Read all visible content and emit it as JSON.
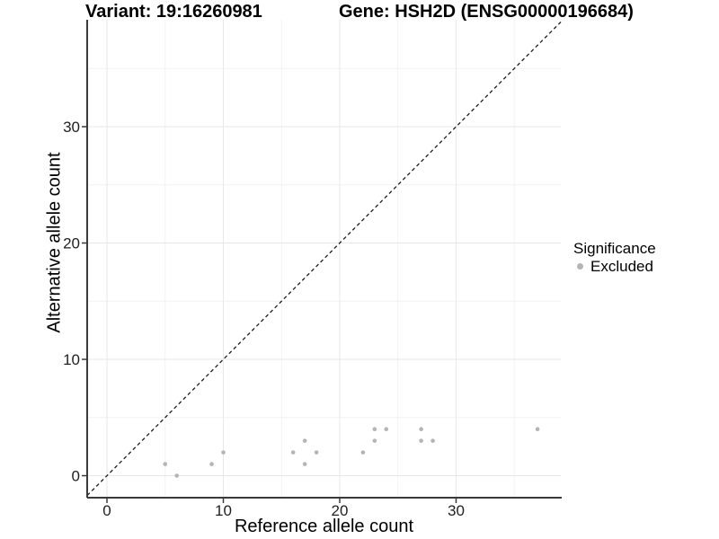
{
  "chart_data": {
    "type": "scatter",
    "title_left": "Variant: 19:16260981",
    "title_right": "Gene: HSH2D (ENSG00000196684)",
    "xlabel": "Reference allele count",
    "ylabel": "Alternative allele count",
    "x_ticks": [
      0,
      10,
      20,
      30
    ],
    "y_ticks": [
      0,
      10,
      20,
      30
    ],
    "x_minor_breaks": [
      5,
      15,
      25,
      35
    ],
    "y_minor_breaks": [
      5,
      15,
      25,
      35
    ],
    "xlim": [
      -1.7,
      39.0
    ],
    "ylim": [
      -1.89,
      39.19
    ],
    "grid": true,
    "identity_line": {
      "equation": "y = x",
      "style": "dashed",
      "color": "#1a1a1a"
    },
    "legend": {
      "title": "Significance",
      "position": "right",
      "items": [
        {
          "label": "Excluded",
          "color": "#b4b4b4"
        }
      ]
    },
    "series": [
      {
        "name": "Excluded",
        "color": "#b4b4b4",
        "points": [
          [
            5,
            1
          ],
          [
            6,
            0
          ],
          [
            9,
            1
          ],
          [
            10,
            2
          ],
          [
            16,
            2
          ],
          [
            17,
            1
          ],
          [
            17,
            3
          ],
          [
            18,
            2
          ],
          [
            22,
            2
          ],
          [
            23,
            3
          ],
          [
            23,
            4
          ],
          [
            24,
            4
          ],
          [
            27,
            3
          ],
          [
            27,
            4
          ],
          [
            28,
            3
          ],
          [
            37,
            4
          ]
        ]
      }
    ]
  },
  "colors": {
    "background": "#ffffff",
    "axis_line": "#3a3a3a",
    "tick_label": "#1f1f1f",
    "grid_major": "#e7e7e7",
    "grid_minor": "#f2f2f2"
  }
}
